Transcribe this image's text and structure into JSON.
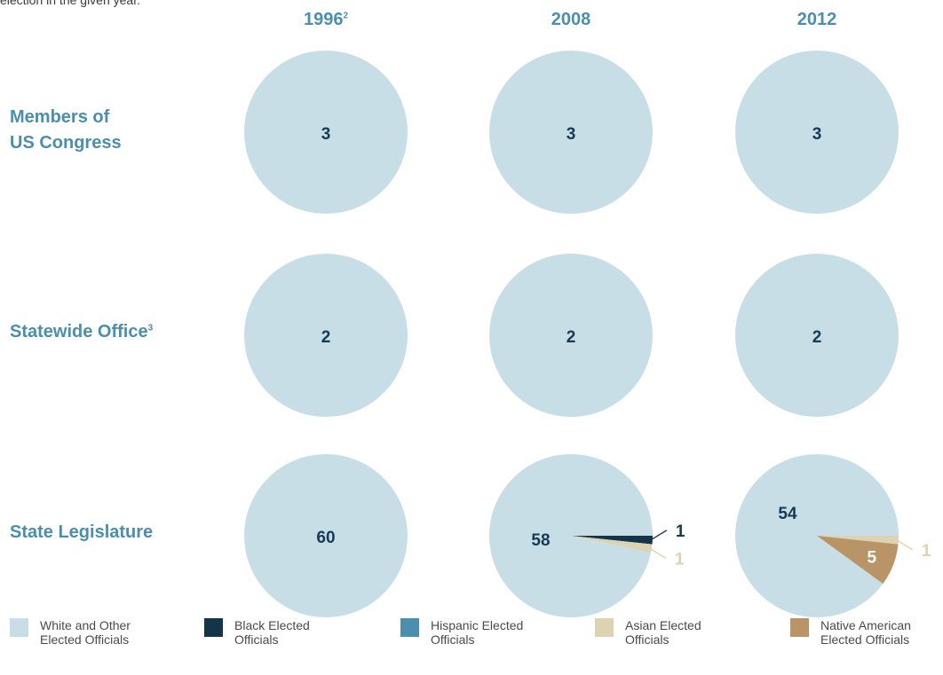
{
  "intro_text": "election in the given year.",
  "colors": {
    "heading": "#4a8fae",
    "white_other": "#c8dee7",
    "black": "#14344a",
    "hispanic": "#4a8fae",
    "asian": "#ddd2b2",
    "native_american": "#b99467",
    "value_text": "#163a52"
  },
  "columns": [
    {
      "label": "1996",
      "sup": "2"
    },
    {
      "label": "2008",
      "sup": ""
    },
    {
      "label": "2012",
      "sup": ""
    }
  ],
  "rows": [
    {
      "line1": "Members of",
      "line2": "US Congress",
      "sup": ""
    },
    {
      "line1": "Statewide Office",
      "line2": "",
      "sup": "3"
    },
    {
      "line1": "State Legislature",
      "line2": "",
      "sup": ""
    }
  ],
  "legend": [
    {
      "key": "white_other",
      "line1": "White and Other",
      "line2": "Elected Officials"
    },
    {
      "key": "black",
      "line1": "Black Elected",
      "line2": "Officials"
    },
    {
      "key": "hispanic",
      "line1": "Hispanic Elected",
      "line2": "Officials"
    },
    {
      "key": "asian",
      "line1": "Asian Elected",
      "line2": "Officials"
    },
    {
      "key": "native_american",
      "line1": "Native American",
      "line2": "Elected Officials"
    }
  ],
  "chart_data": {
    "type": "pie",
    "categories": [
      "White and Other Elected Officials",
      "Black Elected Officials",
      "Hispanic Elected Officials",
      "Asian Elected Officials",
      "Native American Elected Officials"
    ],
    "pies": [
      {
        "row": "Members of US Congress",
        "year": "1996",
        "values": [
          3,
          0,
          0,
          0,
          0
        ]
      },
      {
        "row": "Members of US Congress",
        "year": "2008",
        "values": [
          3,
          0,
          0,
          0,
          0
        ]
      },
      {
        "row": "Members of US Congress",
        "year": "2012",
        "values": [
          3,
          0,
          0,
          0,
          0
        ]
      },
      {
        "row": "Statewide Office",
        "year": "1996",
        "values": [
          2,
          0,
          0,
          0,
          0
        ]
      },
      {
        "row": "Statewide Office",
        "year": "2008",
        "values": [
          2,
          0,
          0,
          0,
          0
        ]
      },
      {
        "row": "Statewide Office",
        "year": "2012",
        "values": [
          2,
          0,
          0,
          0,
          0
        ]
      },
      {
        "row": "State Legislature",
        "year": "1996",
        "values": [
          60,
          0,
          0,
          0,
          0
        ]
      },
      {
        "row": "State Legislature",
        "year": "2008",
        "values": [
          58,
          1,
          0,
          1,
          0
        ]
      },
      {
        "row": "State Legislature",
        "year": "2012",
        "values": [
          54,
          0,
          0,
          1,
          5
        ]
      }
    ]
  }
}
